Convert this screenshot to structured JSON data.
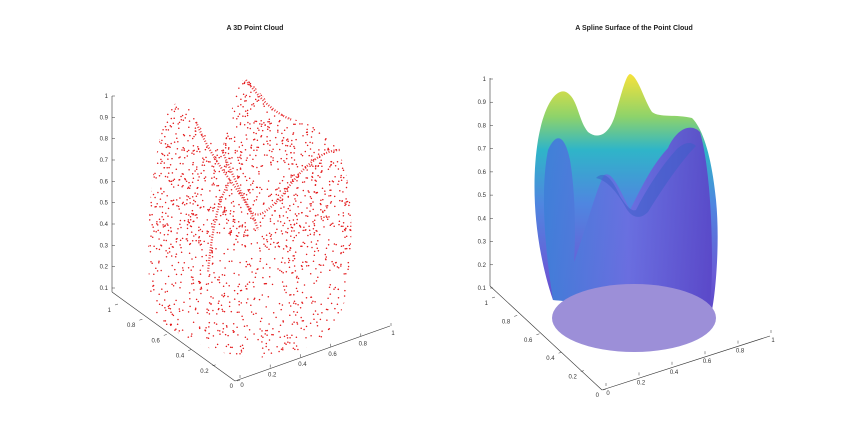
{
  "figure": {
    "left_title": "A 3D Point Cloud",
    "right_title": "A Spline Surface of the Point Cloud"
  },
  "chart_data": [
    {
      "type": "scatter",
      "title": "A 3D Point Cloud",
      "xlabel": "",
      "ylabel": "",
      "zlabel": "",
      "x_ticks": [
        "0",
        "0.2",
        "0.4",
        "0.6",
        "0.8",
        "1"
      ],
      "y_ticks": [
        "0",
        "0.2",
        "0.4",
        "0.6",
        "0.8",
        "1"
      ],
      "z_ticks": [
        "0.1",
        "0.2",
        "0.3",
        "0.4",
        "0.5",
        "0.6",
        "0.7",
        "0.8",
        "0.9",
        "1"
      ],
      "xlim": [
        0,
        1
      ],
      "ylim": [
        0,
        1
      ],
      "zlim": [
        0.1,
        1
      ],
      "marker_color": "#e41a1c",
      "grid": false
    },
    {
      "type": "surface",
      "title": "A Spline Surface of the Point Cloud",
      "xlabel": "",
      "ylabel": "",
      "zlabel": "",
      "x_ticks": [
        "0",
        "0.2",
        "0.4",
        "0.6",
        "0.8",
        "1"
      ],
      "y_ticks": [
        "0",
        "0.2",
        "0.4",
        "0.6",
        "0.8",
        "1"
      ],
      "z_ticks": [
        "0.1",
        "0.2",
        "0.3",
        "0.4",
        "0.5",
        "0.6",
        "0.7",
        "0.8",
        "0.9",
        "1"
      ],
      "xlim": [
        0,
        1
      ],
      "ylim": [
        0,
        1
      ],
      "zlim": [
        0.1,
        1
      ],
      "colormap": "parula",
      "colors": {
        "low": "#6a5cd6",
        "mid": "#2fb5c8",
        "high": "#f6e23a",
        "base": "#9c8fd8"
      },
      "grid": false
    }
  ]
}
